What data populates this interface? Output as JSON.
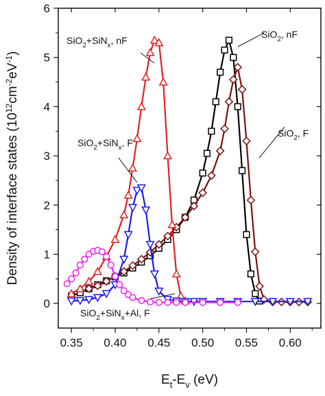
{
  "chart_data": {
    "type": "line",
    "xlabel": "E_t-E_v (eV)",
    "xlabel_parts": {
      "main": "E",
      "sub1": "t",
      "mid": "-E",
      "sub2": "v",
      "unit": " (eV)"
    },
    "ylabel": "Density of interface states (10^12 cm^-2 eV^-1)",
    "ylabel_parts": {
      "main": "Density of interface states (10",
      "sup1": "12",
      "mid": "cm",
      "sup2": "-2",
      "mid2": "eV",
      "sup3": "-1",
      "end": ")"
    },
    "xlim": [
      0.335,
      0.635
    ],
    "ylim": [
      -0.5,
      6
    ],
    "xticks": [
      "0.35",
      "0.40",
      "0.45",
      "0.50",
      "0.55",
      "0.60"
    ],
    "yticks": [
      "0",
      "1",
      "2",
      "3",
      "4",
      "5",
      "6"
    ],
    "grid": false,
    "series": [
      {
        "name": "SiO2, nF",
        "color": "#000000",
        "marker": "square",
        "x": [
          0.35,
          0.36,
          0.37,
          0.38,
          0.39,
          0.4,
          0.41,
          0.42,
          0.43,
          0.44,
          0.45,
          0.46,
          0.47,
          0.48,
          0.49,
          0.5,
          0.505,
          0.51,
          0.515,
          0.52,
          0.525,
          0.53,
          0.535,
          0.54,
          0.545,
          0.55,
          0.555,
          0.56,
          0.565
        ],
        "y": [
          0.15,
          0.22,
          0.3,
          0.38,
          0.46,
          0.54,
          0.62,
          0.72,
          0.84,
          0.97,
          1.12,
          1.3,
          1.5,
          1.75,
          2.1,
          2.65,
          3.05,
          3.5,
          4.1,
          4.7,
          5.15,
          5.35,
          5.0,
          4.0,
          2.7,
          1.4,
          0.6,
          0.2,
          0.05
        ]
      },
      {
        "name": "SiO2, F",
        "color": "#7a1010",
        "marker": "diamond",
        "x": [
          0.37,
          0.38,
          0.39,
          0.4,
          0.41,
          0.42,
          0.43,
          0.44,
          0.45,
          0.46,
          0.47,
          0.48,
          0.49,
          0.5,
          0.51,
          0.52,
          0.525,
          0.53,
          0.535,
          0.54,
          0.545,
          0.55,
          0.555,
          0.56,
          0.565,
          0.57,
          0.58,
          0.59,
          0.6,
          0.61,
          0.62
        ],
        "y": [
          0.3,
          0.36,
          0.45,
          0.55,
          0.65,
          0.77,
          0.9,
          1.04,
          1.2,
          1.37,
          1.55,
          1.75,
          1.98,
          2.25,
          2.6,
          3.1,
          3.55,
          4.1,
          4.55,
          4.8,
          4.35,
          3.3,
          2.1,
          1.05,
          0.35,
          0.08,
          0.03,
          0.03,
          0.03,
          0.03,
          0.03
        ]
      },
      {
        "name": "SiO2+SiNx, nF",
        "color": "#e02020",
        "marker": "triangle-up",
        "x": [
          0.35,
          0.36,
          0.37,
          0.38,
          0.39,
          0.4,
          0.41,
          0.415,
          0.42,
          0.425,
          0.43,
          0.435,
          0.44,
          0.445,
          0.45,
          0.455,
          0.46,
          0.465,
          0.47,
          0.475,
          0.48
        ],
        "y": [
          0.2,
          0.3,
          0.45,
          0.65,
          0.95,
          1.3,
          1.8,
          2.2,
          2.75,
          3.35,
          4.0,
          4.6,
          5.1,
          5.35,
          5.3,
          4.5,
          3.0,
          1.6,
          0.6,
          0.15,
          0.05
        ]
      },
      {
        "name": "SiO2+SiNx, F",
        "color": "#1a1aee",
        "marker": "triangle-down",
        "x": [
          0.35,
          0.36,
          0.37,
          0.38,
          0.39,
          0.4,
          0.41,
          0.415,
          0.42,
          0.425,
          0.43,
          0.435,
          0.44,
          0.445,
          0.45,
          0.46,
          0.47,
          0.48,
          0.49,
          0.5,
          0.52,
          0.54,
          0.56,
          0.58,
          0.6,
          0.62
        ],
        "y": [
          0.05,
          0.06,
          0.08,
          0.12,
          0.2,
          0.38,
          0.9,
          1.4,
          1.95,
          2.3,
          2.35,
          1.9,
          1.2,
          0.6,
          0.25,
          0.08,
          0.05,
          0.04,
          0.04,
          0.04,
          0.04,
          0.04,
          0.04,
          0.04,
          0.04,
          0.04
        ]
      },
      {
        "name": "SiO2+SiNx+Al, F",
        "color": "#ee22ee",
        "marker": "circle",
        "x": [
          0.345,
          0.35,
          0.355,
          0.36,
          0.365,
          0.37,
          0.375,
          0.38,
          0.385,
          0.39,
          0.395,
          0.4,
          0.405,
          0.41,
          0.415,
          0.42,
          0.43,
          0.44,
          0.45,
          0.46,
          0.47,
          0.48,
          0.5,
          0.52,
          0.54
        ],
        "y": [
          0.4,
          0.5,
          0.62,
          0.78,
          0.9,
          1.0,
          1.06,
          1.08,
          1.05,
          0.95,
          0.78,
          0.55,
          0.38,
          0.26,
          0.18,
          0.12,
          0.06,
          0.03,
          0.02,
          0.02,
          0.02,
          0.02,
          0.02,
          0.02,
          0.02
        ]
      }
    ],
    "annotations": [
      {
        "id": "a1",
        "main": "SiO",
        "sub": "2",
        "rest": "+SiN",
        "sub2": "x",
        "tail": ", nF"
      },
      {
        "id": "a2",
        "main": "SiO",
        "sub": "2",
        "rest": "",
        "sub2": "",
        "tail": ", nF"
      },
      {
        "id": "a3",
        "main": "SiO",
        "sub": "2",
        "rest": "+SiN",
        "sub2": "x",
        "tail": ", F"
      },
      {
        "id": "a4",
        "main": "SiO",
        "sub": "2",
        "rest": "",
        "sub2": "",
        "tail": ", F"
      },
      {
        "id": "a5",
        "main": "SiO",
        "sub": "2",
        "rest": "+SiN",
        "sub2": "x",
        "tail": "+Al, F"
      }
    ]
  }
}
